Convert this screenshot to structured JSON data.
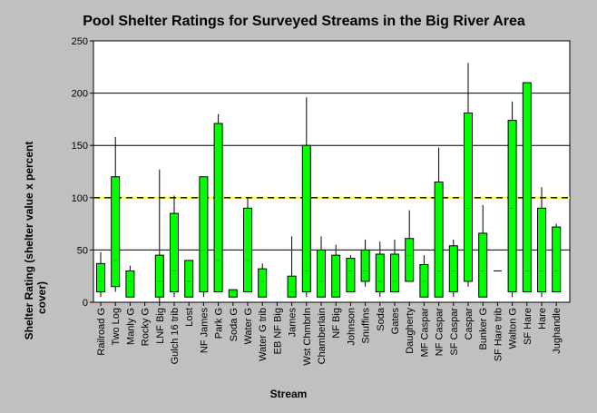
{
  "chart_data": {
    "type": "box",
    "title": "Pool Shelter Ratings for Surveyed Streams in the Big River Area",
    "xlabel": "Stream",
    "ylabel": "Shelter Rating (shelter value x percent cover)",
    "ylim": [
      0,
      250
    ],
    "yticks": [
      0,
      50,
      100,
      150,
      200,
      250
    ],
    "grid": "horizontal",
    "reference_line": 100,
    "colors": {
      "background": "#c0c0c0",
      "plot_area": "#ffffff",
      "box_fill": "#00ff00",
      "box_stroke": "#000000",
      "reference_line": "#ffff00",
      "grid": "#000000"
    },
    "categories": [
      "Railroad G",
      "Two Log",
      "Manly G",
      "Rocky G",
      "LNF Big",
      "Gulch 16 trib",
      "Lost",
      "NF James",
      "Park G",
      "Soda G",
      "Water G",
      "Water G trib",
      "EB NF Big",
      "James",
      "Wst Chmbrln",
      "Chamberlain",
      "NF Big",
      "Johnson",
      "Snuffins",
      "Soda",
      "Gates",
      "Daugherty",
      "MF Caspar",
      "NF Caspar",
      "SF Caspar",
      "Caspar",
      "Bunker G",
      "SF Hare trib",
      "Walton G",
      "SF Hare",
      "Hare",
      "Jughandle"
    ],
    "boxes": [
      {
        "min": 5,
        "q1": 10,
        "median": 20,
        "q3": 37,
        "max": 48
      },
      {
        "min": 10,
        "q1": 15,
        "median": 40,
        "q3": 120,
        "max": 158
      },
      {
        "min": 5,
        "q1": 5,
        "median": 20,
        "q3": 30,
        "max": 35
      },
      null,
      {
        "min": 0,
        "q1": 5,
        "median": 20,
        "q3": 45,
        "max": 127
      },
      {
        "min": 5,
        "q1": 10,
        "median": 30,
        "q3": 85,
        "max": 102
      },
      {
        "min": 5,
        "q1": 5,
        "median": 20,
        "q3": 40,
        "max": 40
      },
      {
        "min": 5,
        "q1": 10,
        "median": 50,
        "q3": 120,
        "max": 120
      },
      {
        "min": 10,
        "q1": 10,
        "median": 40,
        "q3": 171,
        "max": 180
      },
      {
        "min": 5,
        "q1": 5,
        "median": 10,
        "q3": 12,
        "max": 12
      },
      {
        "min": 10,
        "q1": 10,
        "median": 40,
        "q3": 90,
        "max": 100
      },
      {
        "min": 5,
        "q1": 5,
        "median": 20,
        "q3": 32,
        "max": 37
      },
      null,
      {
        "min": 5,
        "q1": 5,
        "median": 10,
        "q3": 25,
        "max": 63
      },
      {
        "min": 5,
        "q1": 10,
        "median": 30,
        "q3": 150,
        "max": 196
      },
      {
        "min": 5,
        "q1": 5,
        "median": 20,
        "q3": 50,
        "max": 63
      },
      {
        "min": 5,
        "q1": 5,
        "median": 10,
        "q3": 45,
        "max": 55
      },
      {
        "min": 10,
        "q1": 10,
        "median": 30,
        "q3": 42,
        "max": 45
      },
      {
        "min": 15,
        "q1": 20,
        "median": 30,
        "q3": 50,
        "max": 60
      },
      {
        "min": 5,
        "q1": 10,
        "median": 20,
        "q3": 46,
        "max": 58
      },
      {
        "min": 10,
        "q1": 10,
        "median": 20,
        "q3": 46,
        "max": 60
      },
      {
        "min": 20,
        "q1": 20,
        "median": 45,
        "q3": 61,
        "max": 88
      },
      {
        "min": 5,
        "q1": 5,
        "median": 20,
        "q3": 36,
        "max": 45
      },
      {
        "min": 5,
        "q1": 5,
        "median": 30,
        "q3": 115,
        "max": 148
      },
      {
        "min": 5,
        "q1": 10,
        "median": 30,
        "q3": 54,
        "max": 60
      },
      {
        "min": 15,
        "q1": 20,
        "median": 90,
        "q3": 181,
        "max": 229
      },
      {
        "min": 5,
        "q1": 5,
        "median": 30,
        "q3": 66,
        "max": 93
      },
      {
        "min": 30,
        "q1": 30,
        "median": 30,
        "q3": 30,
        "max": 30
      },
      {
        "min": 5,
        "q1": 10,
        "median": 90,
        "q3": 174,
        "max": 192
      },
      {
        "min": 10,
        "q1": 10,
        "median": 30,
        "q3": 210,
        "max": 210
      },
      {
        "min": 5,
        "q1": 10,
        "median": 30,
        "q3": 90,
        "max": 110
      },
      {
        "min": 10,
        "q1": 10,
        "median": 30,
        "q3": 72,
        "max": 75
      }
    ]
  }
}
